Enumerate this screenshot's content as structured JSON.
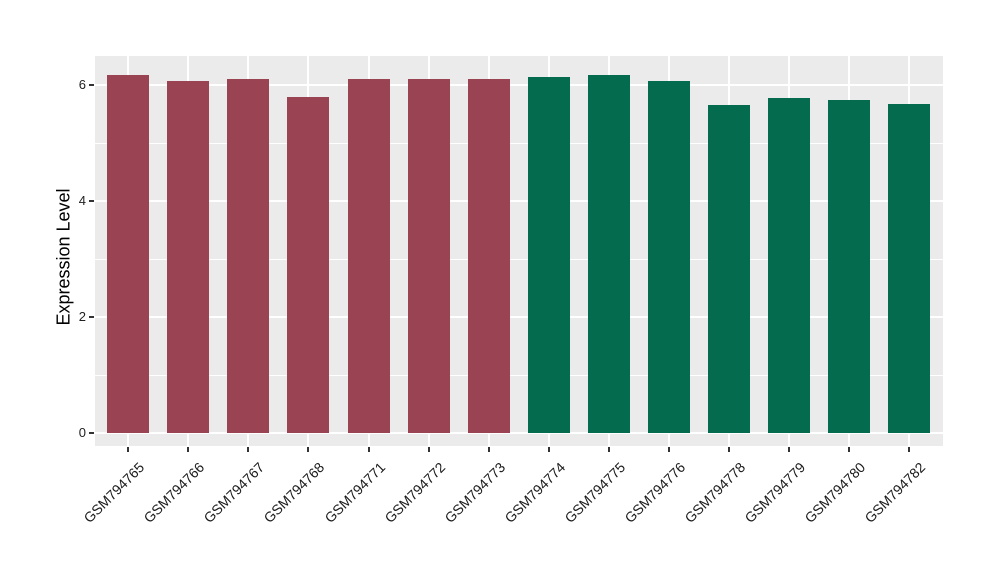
{
  "figure": {
    "background_color": "#FFFFFF",
    "panel_background_color": "#EBEBEB",
    "gridline_color": "#FFFFFF",
    "tick_mark_color": "#333333",
    "axis_text_color": "#1A1A1A",
    "axis_title_color": "#000000"
  },
  "chart_data": {
    "type": "bar",
    "title": "",
    "xlabel": "",
    "ylabel": "Expression Level",
    "categories": [
      "GSM794765",
      "GSM794766",
      "GSM794767",
      "GSM794768",
      "GSM794771",
      "GSM794772",
      "GSM794773",
      "GSM794774",
      "GSM794775",
      "GSM794776",
      "GSM794778",
      "GSM794779",
      "GSM794780",
      "GSM794782"
    ],
    "values": [
      6.18,
      6.07,
      6.1,
      5.8,
      6.1,
      6.11,
      6.1,
      6.14,
      6.18,
      6.07,
      5.66,
      5.77,
      5.75,
      5.67
    ],
    "bar_colors": [
      "#9A4352",
      "#9A4352",
      "#9A4352",
      "#9A4352",
      "#9A4352",
      "#9A4352",
      "#9A4352",
      "#046B4E",
      "#046B4E",
      "#046B4E",
      "#046B4E",
      "#046B4E",
      "#046B4E",
      "#046B4E"
    ],
    "groups": [
      "group1",
      "group1",
      "group1",
      "group1",
      "group1",
      "group1",
      "group1",
      "group2",
      "group2",
      "group2",
      "group2",
      "group2",
      "group2",
      "group2"
    ],
    "group_colors": {
      "group1": "#9A4352",
      "group2": "#046B4E"
    },
    "yticks": [
      0,
      2,
      4,
      6
    ],
    "y_minor_ticks": [
      1,
      3,
      5
    ],
    "ylim": [
      0,
      6.5
    ],
    "x_tick_rotation": 45,
    "grid": true,
    "legend_position": "none"
  }
}
